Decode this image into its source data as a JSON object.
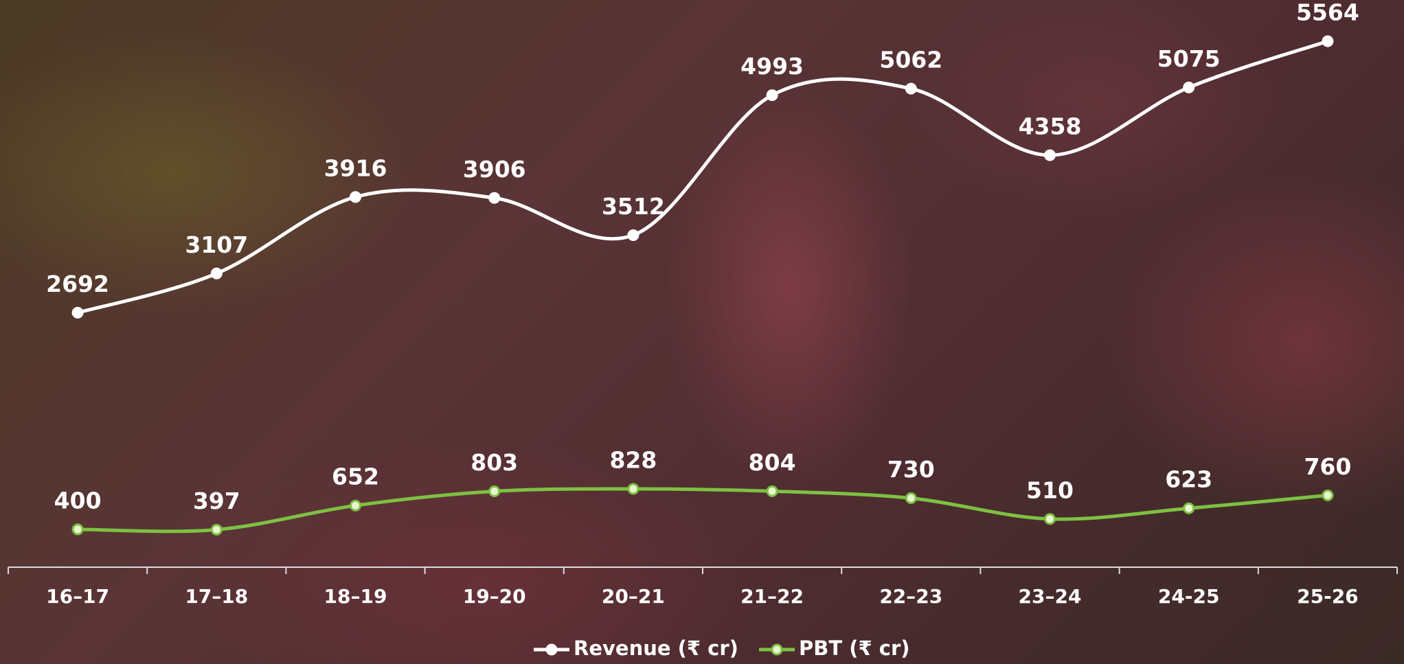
{
  "chart_data": {
    "type": "line",
    "categories": [
      "16–17",
      "17–18",
      "18–19",
      "19–20",
      "20–21",
      "21–22",
      "22–23",
      "23–24",
      "24-25",
      "25-26"
    ],
    "series": [
      {
        "name": "Revenue (₹ cr)",
        "color": "#ffffff",
        "values": [
          2692,
          3107,
          3916,
          3906,
          3512,
          4993,
          5062,
          4358,
          5075,
          5564
        ]
      },
      {
        "name": "PBT (₹ cr)",
        "color": "#7dc142",
        "values": [
          400,
          397,
          652,
          803,
          828,
          804,
          730,
          510,
          623,
          760
        ]
      }
    ],
    "ylim": [
      0,
      6000
    ]
  }
}
